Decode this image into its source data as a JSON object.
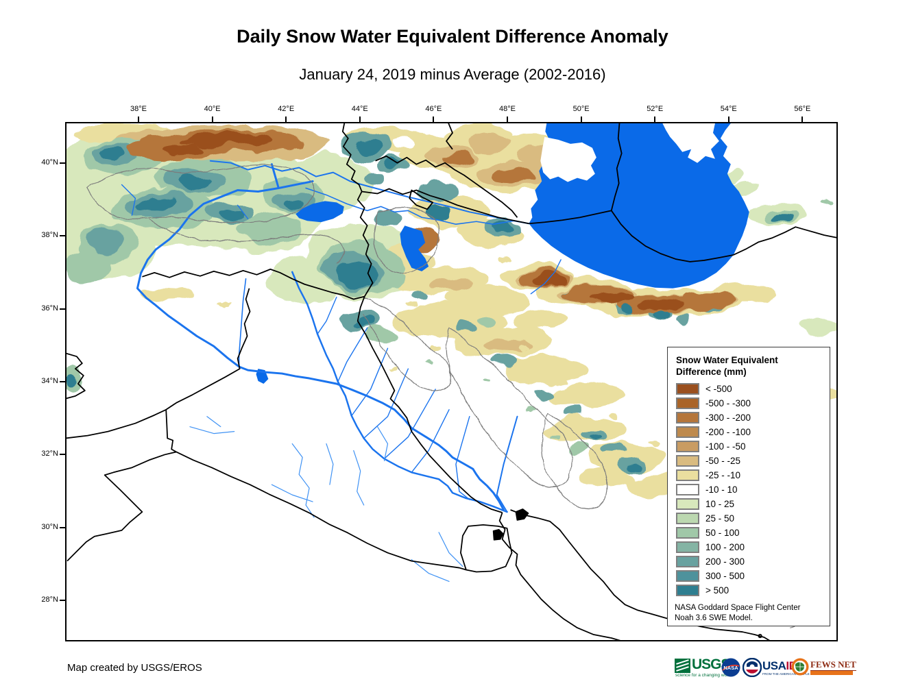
{
  "header": {
    "title": "Daily Snow Water Equivalent Difference Anomaly",
    "subtitle": "January 24, 2019 minus Average (2002-2016)"
  },
  "axes": {
    "lon": [
      "38°E",
      "40°E",
      "42°E",
      "44°E",
      "46°E",
      "48°E",
      "50°E",
      "52°E",
      "54°E",
      "56°E"
    ],
    "lat": [
      "40°N",
      "38°N",
      "36°N",
      "34°N",
      "32°N",
      "30°N",
      "28°N"
    ]
  },
  "legend": {
    "title1": "Snow Water Equivalent",
    "title2": "Difference (mm)",
    "items": [
      {
        "label": "< -500",
        "color": "#9A4F1E"
      },
      {
        "label": "-500 - -300",
        "color": "#AA6428"
      },
      {
        "label": "-300 - -200",
        "color": "#B5763B"
      },
      {
        "label": "-200 - -100",
        "color": "#BE8A4D"
      },
      {
        "label": "-100 - -50",
        "color": "#C99C62"
      },
      {
        "label": "-50 - -25",
        "color": "#D9BB80"
      },
      {
        "label": "-25 - -10",
        "color": "#EADF9F"
      },
      {
        "label": "-10 - 10",
        "color": "#FFFFFF"
      },
      {
        "label": "10 - 25",
        "color": "#D8E8BC"
      },
      {
        "label": "25 - 50",
        "color": "#BCD8B0"
      },
      {
        "label": "50 - 100",
        "color": "#A0C8A8"
      },
      {
        "label": "100 - 200",
        "color": "#84B4A4"
      },
      {
        "label": "200 - 300",
        "color": "#68A2A0"
      },
      {
        "label": "300 - 500",
        "color": "#4E929C"
      },
      {
        "label": "> 500",
        "color": "#2E7E90"
      }
    ],
    "source1": "NASA Goddard Space Flight Center",
    "source2": "Noah 3.6 SWE Model."
  },
  "footer": {
    "credit": "Map created by USGS/EROS",
    "logos": {
      "usgs": {
        "name": "USGS",
        "tagline": "science for a changing world"
      },
      "nasa": {
        "name": "NASA"
      },
      "usaid": {
        "name_part1": "USA",
        "name_part2": "ID",
        "tagline": "FROM THE AMERICAN PEOPLE"
      },
      "fews": {
        "name": "FEWS NET"
      }
    }
  },
  "map_colors": {
    "water": "#0A6AE8",
    "river": "#1B74EE",
    "wadi": "#3F92F4",
    "border": "#000000",
    "watershed": "#7b7b7b"
  }
}
